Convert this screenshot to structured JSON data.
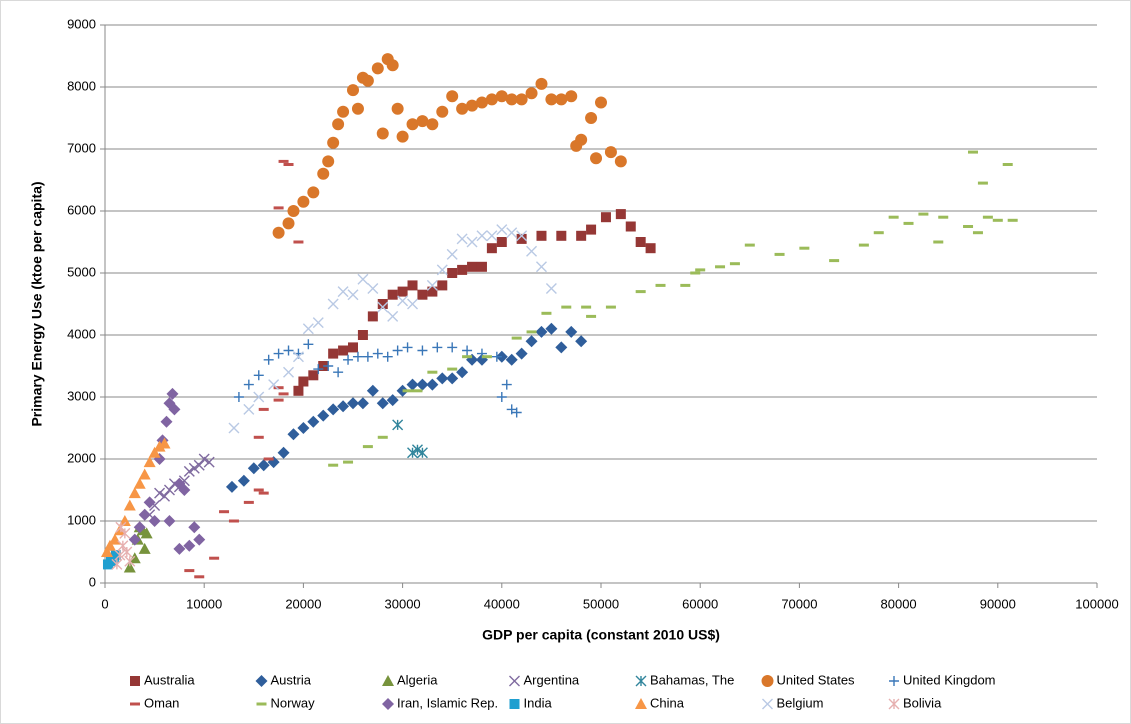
{
  "chart_data": {
    "type": "scatter",
    "x_label": "GDP per capita (constant 2010 US$)",
    "y_label": "Primary Energy Use (ktoe per capita)",
    "xlim": [
      0,
      100000
    ],
    "ylim": [
      0,
      9000
    ],
    "xticks": [
      0,
      10000,
      20000,
      30000,
      40000,
      50000,
      60000,
      70000,
      80000,
      90000,
      100000
    ],
    "yticks": [
      0,
      1000,
      2000,
      3000,
      4000,
      5000,
      6000,
      7000,
      8000,
      9000
    ],
    "grid": true,
    "legend": "bottom",
    "series": [
      {
        "name": "Australia",
        "color": "#953735",
        "marker": "square",
        "x": [
          19500,
          20000,
          21000,
          22000,
          23000,
          24000,
          25000,
          26000,
          27000,
          28000,
          29000,
          30000,
          31000,
          32000,
          33000,
          34000,
          35000,
          36000,
          37000,
          38000,
          39000,
          40000,
          42000,
          44000,
          46000,
          48000,
          49000,
          50500,
          52000,
          53000,
          54000,
          55000
        ],
        "values": [
          3100,
          3250,
          3350,
          3500,
          3700,
          3750,
          3800,
          4000,
          4300,
          4500,
          4650,
          4700,
          4800,
          4650,
          4700,
          4800,
          5000,
          5050,
          5100,
          5100,
          5400,
          5500,
          5550,
          5600,
          5600,
          5600,
          5700,
          5900,
          5950,
          5750,
          5500,
          5400
        ]
      },
      {
        "name": "Austria",
        "color": "#2f5e9b",
        "marker": "diamond",
        "x": [
          12800,
          14000,
          15000,
          16000,
          17000,
          18000,
          19000,
          20000,
          21000,
          22000,
          23000,
          24000,
          25000,
          26000,
          27000,
          28000,
          29000,
          30000,
          31000,
          32000,
          33000,
          34000,
          35000,
          36000,
          37000,
          38000,
          40000,
          41000,
          42000,
          43000,
          44000,
          45000,
          46000,
          47000,
          48000
        ],
        "values": [
          1550,
          1650,
          1850,
          1900,
          1950,
          2100,
          2400,
          2500,
          2600,
          2700,
          2800,
          2850,
          2900,
          2900,
          3100,
          2900,
          2950,
          3100,
          3200,
          3200,
          3200,
          3300,
          3300,
          3400,
          3600,
          3600,
          3650,
          3600,
          3700,
          3900,
          4050,
          4100,
          3800,
          4050,
          3900
        ]
      },
      {
        "name": "Algeria",
        "color": "#77933c",
        "marker": "triangle",
        "x": [
          2500,
          3000,
          3300,
          3500,
          3800,
          4000,
          4200
        ],
        "values": [
          250,
          400,
          700,
          900,
          850,
          550,
          800
        ]
      },
      {
        "name": "Argentina",
        "color": "#7f6a9f",
        "marker": "x",
        "x": [
          4500,
          5000,
          5500,
          6000,
          6500,
          7000,
          7500,
          8000,
          8500,
          9000,
          9500,
          10000,
          10500
        ],
        "values": [
          1100,
          1250,
          1450,
          1400,
          1500,
          1600,
          1550,
          1650,
          1800,
          1850,
          1900,
          2000,
          1950
        ]
      },
      {
        "name": "Bahamas, The",
        "color": "#31859c",
        "marker": "asterisk",
        "x": [
          29500,
          31000,
          31500,
          32000
        ],
        "values": [
          2550,
          2100,
          2150,
          2100
        ]
      },
      {
        "name": "United States",
        "color": "#d9772a",
        "marker": "circle",
        "x": [
          17500,
          18500,
          19000,
          20000,
          21000,
          22000,
          22500,
          23000,
          23500,
          24000,
          25000,
          25500,
          26000,
          26500,
          27500,
          28000,
          28500,
          29000,
          29500,
          30000,
          31000,
          32000,
          33000,
          34000,
          35000,
          36000,
          37000,
          38000,
          39000,
          40000,
          41000,
          42000,
          43000,
          44000,
          45000,
          46000,
          47000,
          47500,
          48000,
          49000,
          49500,
          50000,
          51000,
          52000
        ],
        "values": [
          5650,
          5800,
          6000,
          6150,
          6300,
          6600,
          6800,
          7100,
          7400,
          7600,
          7950,
          7650,
          8150,
          8100,
          8300,
          7250,
          8450,
          8350,
          7650,
          7200,
          7400,
          7450,
          7400,
          7600,
          7850,
          7650,
          7700,
          7750,
          7800,
          7850,
          7800,
          7800,
          7900,
          8050,
          7800,
          7800,
          7850,
          7050,
          7150,
          7500,
          6850,
          7750,
          6950,
          6800
        ]
      },
      {
        "name": "United Kingdom",
        "color": "#3a77b8",
        "marker": "plus",
        "x": [
          13500,
          14500,
          15500,
          16500,
          17500,
          18500,
          19500,
          20500,
          21500,
          22500,
          23500,
          24500,
          25500,
          26500,
          27500,
          28500,
          29500,
          30500,
          32000,
          33500,
          35000,
          36500,
          38000,
          39500,
          40000,
          40500,
          41000,
          41500
        ],
        "values": [
          3000,
          3200,
          3350,
          3600,
          3700,
          3750,
          3700,
          3850,
          3450,
          3500,
          3400,
          3600,
          3650,
          3650,
          3700,
          3650,
          3750,
          3800,
          3750,
          3800,
          3800,
          3750,
          3700,
          3650,
          3000,
          3200,
          2800,
          2750
        ]
      },
      {
        "name": "Oman",
        "color": "#c0504d",
        "marker": "dash",
        "x": [
          18000,
          18500,
          17500,
          19500,
          16000,
          15500,
          15500,
          16000,
          14500,
          13000,
          12000,
          11000,
          9500,
          8500,
          18000,
          17500,
          17500,
          16500
        ],
        "values": [
          6800,
          6750,
          6050,
          5500,
          2800,
          2350,
          1500,
          1450,
          1300,
          1000,
          1150,
          400,
          100,
          200,
          3050,
          2950,
          3150,
          2000
        ]
      },
      {
        "name": "Norway",
        "color": "#9bbb59",
        "marker": "dash",
        "x": [
          23000,
          24500,
          26500,
          28000,
          30500,
          31500,
          33000,
          35000,
          36500,
          38500,
          41500,
          43000,
          44500,
          46500,
          48500,
          49000,
          51000,
          54000,
          56000,
          58500,
          59500,
          60000,
          62000,
          63500,
          65000,
          68000,
          70500,
          73500,
          76500,
          78000,
          79500,
          81000,
          82500,
          84000,
          84500,
          87000,
          87500,
          88000,
          88500,
          89000,
          90000,
          91000,
          91500
        ],
        "values": [
          1900,
          1950,
          2200,
          2350,
          3100,
          3100,
          3400,
          3450,
          3650,
          3650,
          3950,
          4050,
          4350,
          4450,
          4450,
          4300,
          4450,
          4700,
          4800,
          4800,
          5000,
          5050,
          5100,
          5150,
          5450,
          5300,
          5400,
          5200,
          5450,
          5650,
          5900,
          5800,
          5950,
          5500,
          5900,
          5750,
          6950,
          5650,
          6450,
          5900,
          5850,
          6750,
          5850
        ]
      },
      {
        "name": "Iran, Islamic Rep.",
        "color": "#8064a2",
        "marker": "diamond",
        "x": [
          3000,
          3500,
          4000,
          4500,
          5000,
          5500,
          5800,
          6200,
          6500,
          6800,
          7000,
          7500,
          8000,
          9000,
          9500,
          8500,
          7500,
          6500
        ],
        "values": [
          700,
          900,
          1100,
          1300,
          1000,
          2000,
          2300,
          2600,
          2900,
          3050,
          2800,
          1600,
          1500,
          900,
          700,
          600,
          550,
          1000
        ]
      },
      {
        "name": "India",
        "color": "#1f9fd0",
        "marker": "square",
        "x": [
          300,
          600,
          900,
          1100
        ],
        "values": [
          300,
          350,
          400,
          450
        ]
      },
      {
        "name": "China",
        "color": "#f79646",
        "marker": "triangle",
        "x": [
          200,
          500,
          1000,
          1500,
          2000,
          2500,
          3000,
          3500,
          4000,
          4500,
          5000,
          5500,
          6000
        ],
        "values": [
          500,
          600,
          700,
          850,
          1000,
          1250,
          1450,
          1600,
          1750,
          1950,
          2100,
          2200,
          2250
        ]
      },
      {
        "name": "Belgium",
        "color": "#b9c9e4",
        "marker": "x",
        "x": [
          13000,
          14500,
          15500,
          17000,
          18500,
          19500,
          20500,
          21500,
          23000,
          24000,
          25000,
          26000,
          27000,
          28000,
          29000,
          30000,
          31000,
          33000,
          34000,
          35000,
          36000,
          37000,
          38000,
          39000,
          40000,
          41000,
          42000,
          43000,
          44000,
          45000
        ],
        "values": [
          2500,
          2800,
          3000,
          3200,
          3400,
          3650,
          4100,
          4200,
          4500,
          4700,
          4650,
          4900,
          4750,
          4450,
          4300,
          4550,
          4500,
          4800,
          5050,
          5300,
          5550,
          5500,
          5600,
          5600,
          5700,
          5650,
          5600,
          5350,
          5100,
          4750
        ]
      },
      {
        "name": "Bolivia",
        "color": "#e6b0b0",
        "marker": "asterisk",
        "x": [
          1200,
          1500,
          1800,
          2000,
          1600,
          2200,
          2500
        ],
        "values": [
          300,
          450,
          600,
          800,
          900,
          500,
          350
        ]
      }
    ]
  }
}
